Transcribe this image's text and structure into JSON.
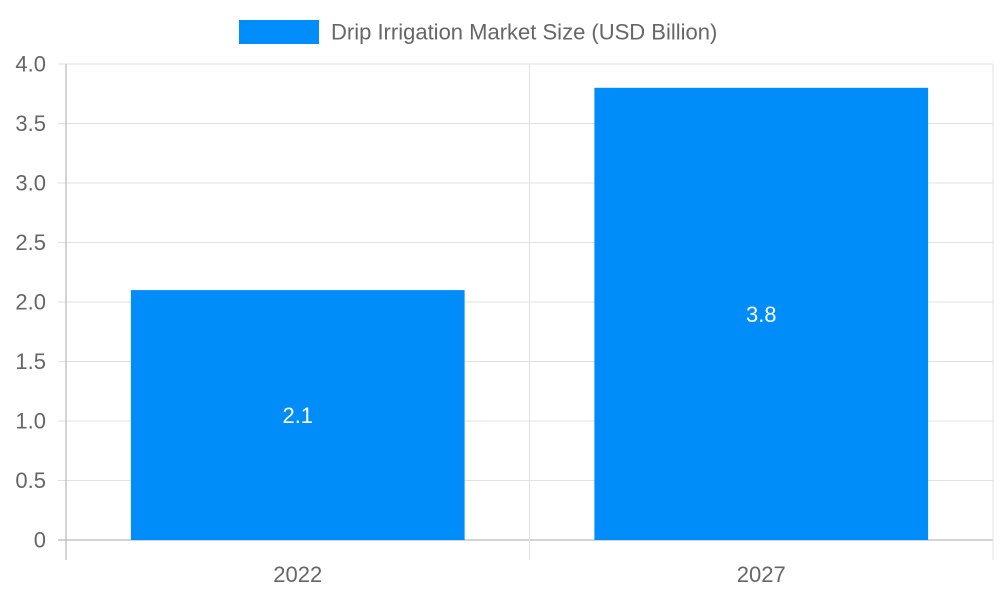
{
  "chart_data": {
    "type": "bar",
    "title": "",
    "categories": [
      "2022",
      "2027"
    ],
    "series": [
      {
        "name": "Drip Irrigation Market Size (USD Billion)",
        "values": [
          2.1,
          3.8
        ],
        "color": "#008cf9"
      }
    ],
    "data_labels": [
      "2.1",
      "3.8"
    ],
    "xlabel": "",
    "ylabel": "",
    "ylim": [
      0,
      4.0
    ],
    "yticks": [
      "0",
      "0.5",
      "1.0",
      "1.5",
      "2.0",
      "2.5",
      "3.0",
      "3.5",
      "4.0"
    ],
    "grid": true,
    "legend_position": "top"
  }
}
